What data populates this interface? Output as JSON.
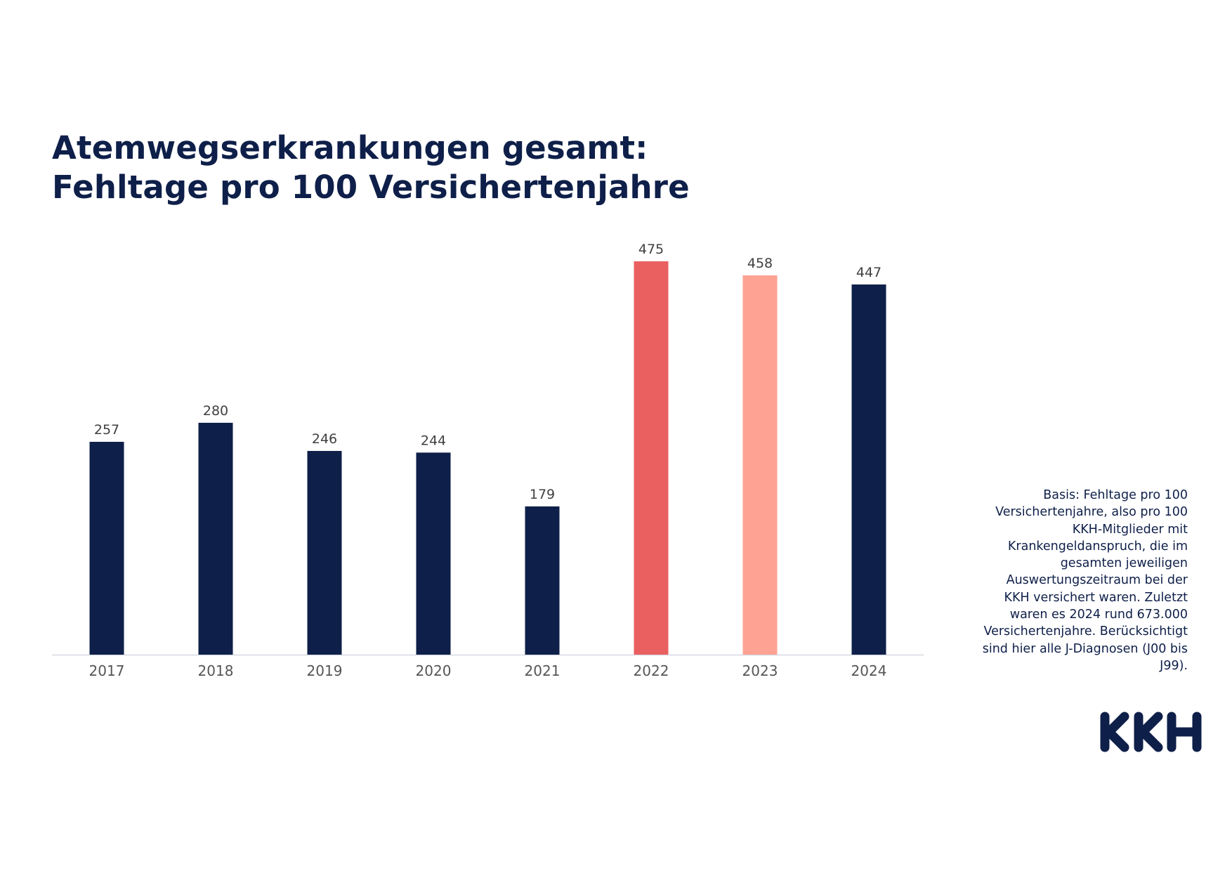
{
  "title": {
    "line1": "Atemwegserkrankungen gesamt:",
    "line2": "Fehltage pro 100 Versichertenjahre"
  },
  "note": "Basis: Fehltage pro 100 Versichertenjahre, also pro 100 KKH-Mitglieder mit Krankengeldanspruch, die im gesamten jeweiligen Auswertungszeitraum bei der KKH versichert waren. Zuletzt waren es 2024 rund 673.000 Versichertenjahre. Berücksichtigt sind hier alle J-Diagnosen (J00 bis J99).",
  "logo": "KKH",
  "colors": {
    "navy": "#0e1f49",
    "coral": "#ea6060",
    "salmon": "#fea293",
    "axis": "#d5d9e2",
    "label": "#404040",
    "tick": "#555555"
  },
  "chart_data": {
    "type": "bar",
    "title": "Atemwegserkrankungen gesamt: Fehltage pro 100 Versichertenjahre",
    "xlabel": "",
    "ylabel": "",
    "categories": [
      "2017",
      "2018",
      "2019",
      "2020",
      "2021",
      "2022",
      "2023",
      "2024"
    ],
    "values": [
      257,
      280,
      246,
      244,
      179,
      475,
      458,
      447
    ],
    "bar_colors": [
      "#0e1f49",
      "#0e1f49",
      "#0e1f49",
      "#0e1f49",
      "#0e1f49",
      "#ea6060",
      "#fea293",
      "#0e1f49"
    ],
    "ylim": [
      0,
      475
    ],
    "grid": false,
    "data_labels": true,
    "legend": "none"
  }
}
